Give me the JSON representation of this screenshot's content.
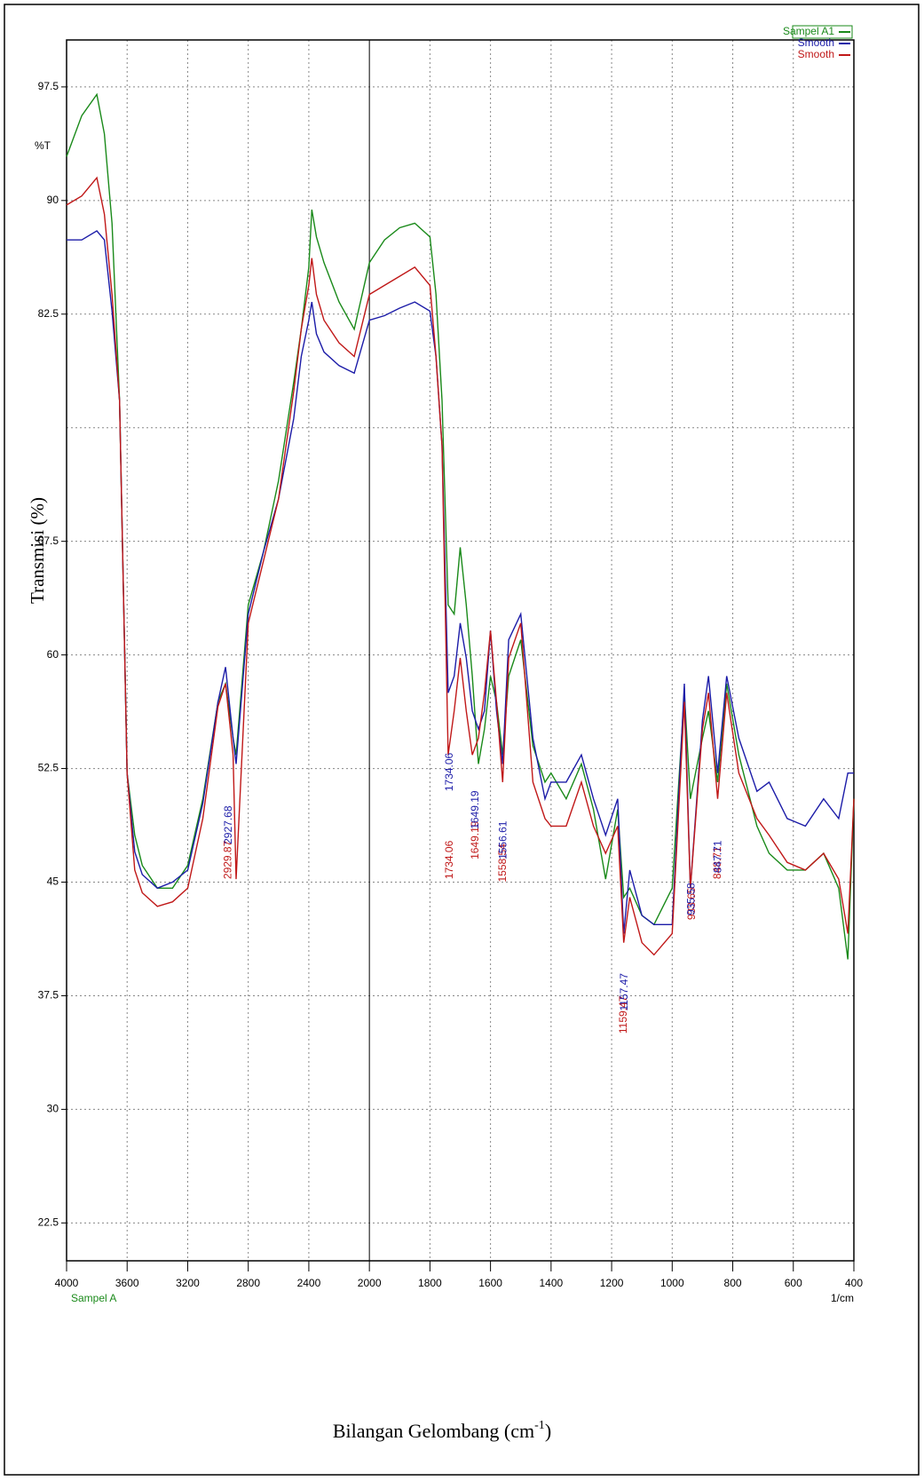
{
  "chart_data": {
    "type": "line",
    "ylabel": "Transmisi (%)",
    "xlabel": "Bilangan Gelombang (cm",
    "xlabel_sup": "-1",
    "xlabel_end": ")",
    "y_unit": "%T",
    "x_unit": "1/cm",
    "sample_name": "Sampel A",
    "xlim": [
      4000,
      400
    ],
    "x_break": 2000,
    "x_break_expansion": 2,
    "xticks": [
      4000,
      3600,
      3200,
      2800,
      2400,
      2000,
      1800,
      1600,
      1400,
      1200,
      1000,
      800,
      600,
      400
    ],
    "ylim": [
      20,
      100.6
    ],
    "yticks": [
      22.5,
      30,
      37.5,
      45,
      52.5,
      60,
      67.5,
      82.5,
      90,
      97.5
    ],
    "ygrid": [
      22.5,
      30,
      37.5,
      45,
      52.5,
      60,
      67.5,
      75,
      82.5,
      90,
      97.5
    ],
    "grid": true,
    "legend": "top-right",
    "x": [
      4000,
      3900,
      3800,
      3750,
      3700,
      3650,
      3600,
      3550,
      3500,
      3400,
      3300,
      3200,
      3100,
      3000,
      2950,
      2900,
      2880,
      2800,
      2700,
      2600,
      2500,
      2450,
      2400,
      2380,
      2350,
      2300,
      2200,
      2100,
      2000,
      1950,
      1900,
      1850,
      1800,
      1780,
      1760,
      1740,
      1720,
      1700,
      1680,
      1660,
      1640,
      1620,
      1600,
      1580,
      1560,
      1540,
      1500,
      1460,
      1420,
      1400,
      1350,
      1300,
      1260,
      1220,
      1180,
      1160,
      1140,
      1100,
      1060,
      1000,
      960,
      940,
      900,
      880,
      850,
      820,
      780,
      720,
      680,
      620,
      560,
      500,
      450,
      420,
      400
    ],
    "series": [
      {
        "name": "Sampel A1",
        "color": "#1a8a1a",
        "values": [
          92.9,
          95.6,
          97.0,
          94.4,
          88.5,
          76.8,
          52.2,
          48.1,
          46.1,
          44.6,
          44.6,
          46.1,
          50.5,
          56.9,
          58.1,
          54.5,
          53.4,
          63.3,
          66.8,
          71.5,
          78.0,
          81.5,
          85.6,
          89.4,
          87.6,
          85.9,
          83.3,
          81.5,
          85.9,
          87.4,
          88.2,
          88.5,
          87.6,
          83.8,
          76.8,
          63.3,
          62.7,
          67.1,
          63.3,
          58.6,
          52.8,
          55.1,
          58.6,
          56.9,
          53.4,
          58.6,
          61.0,
          54.0,
          51.6,
          52.2,
          50.5,
          52.8,
          49.8,
          45.2,
          49.8,
          44.0,
          44.6,
          42.8,
          42.2,
          44.6,
          57.5,
          50.5,
          54.5,
          56.3,
          51.6,
          58.1,
          53.4,
          48.7,
          46.9,
          45.8,
          45.8,
          46.9,
          44.6,
          39.9,
          50.5
        ]
      },
      {
        "name": "Smooth",
        "color": "#1c1ca8",
        "values": [
          87.4,
          87.4,
          88.0,
          87.4,
          82.7,
          76.8,
          52.2,
          47.0,
          45.5,
          44.6,
          45.0,
          45.8,
          50.2,
          56.9,
          59.2,
          54.5,
          52.8,
          62.7,
          66.8,
          70.3,
          75.6,
          79.7,
          82.1,
          83.3,
          81.2,
          80.0,
          79.1,
          78.6,
          82.1,
          82.4,
          82.9,
          83.3,
          82.7,
          79.7,
          73.8,
          57.5,
          58.6,
          62.1,
          59.8,
          56.3,
          55.1,
          56.3,
          61.6,
          56.3,
          52.8,
          61.0,
          62.7,
          54.5,
          50.5,
          51.6,
          51.6,
          53.4,
          50.5,
          48.1,
          50.5,
          41.6,
          45.8,
          42.8,
          42.2,
          42.2,
          58.1,
          44.6,
          55.7,
          58.6,
          52.2,
          58.6,
          54.5,
          51.0,
          51.6,
          49.2,
          48.7,
          50.5,
          49.2,
          52.2,
          52.2
        ]
      },
      {
        "name": "Smooth",
        "color": "#c01818",
        "values": [
          89.7,
          90.3,
          91.5,
          89.1,
          83.8,
          76.8,
          52.2,
          45.8,
          44.3,
          43.4,
          43.7,
          44.6,
          49.2,
          56.6,
          58.1,
          53.4,
          45.2,
          62.1,
          66.2,
          70.3,
          77.4,
          81.5,
          84.4,
          86.2,
          83.8,
          82.1,
          80.6,
          79.7,
          83.8,
          84.4,
          85.0,
          85.6,
          84.4,
          79.7,
          73.8,
          53.4,
          56.3,
          59.8,
          56.3,
          53.4,
          54.5,
          57.5,
          61.6,
          56.9,
          51.6,
          59.8,
          62.1,
          51.6,
          49.2,
          48.7,
          48.7,
          51.6,
          48.7,
          46.9,
          48.7,
          41.0,
          44.0,
          41.0,
          40.2,
          41.6,
          56.9,
          44.6,
          55.1,
          57.5,
          50.5,
          57.5,
          52.2,
          49.2,
          48.1,
          46.3,
          45.8,
          46.9,
          45.2,
          41.6,
          50.5
        ]
      }
    ],
    "peak_labels": [
      {
        "text": "2929.87",
        "x": 2929.87,
        "y": 45.2,
        "series": 2
      },
      {
        "text": "2927.68",
        "x": 2927.68,
        "y": 47.5,
        "series": 1
      },
      {
        "text": "1734.06",
        "x": 1734.06,
        "y": 45.2,
        "series": 2
      },
      {
        "text": "1734.06",
        "x": 1734.06,
        "y": 51.0,
        "series": 1
      },
      {
        "text": "1649.19",
        "x": 1649.19,
        "y": 46.5,
        "series": 2
      },
      {
        "text": "1649.19",
        "x": 1649.19,
        "y": 48.5,
        "series": 1
      },
      {
        "text": "1558.54",
        "x": 1558.54,
        "y": 45.0,
        "series": 2
      },
      {
        "text": "1556.61",
        "x": 1556.61,
        "y": 46.5,
        "series": 1
      },
      {
        "text": "1159.47",
        "x": 1159.47,
        "y": 35.0,
        "series": 2
      },
      {
        "text": "1157.47",
        "x": 1157.47,
        "y": 36.5,
        "series": 1
      },
      {
        "text": "933.65",
        "x": 933.65,
        "y": 42.5,
        "series": 2
      },
      {
        "text": "935.58",
        "x": 935.58,
        "y": 42.8,
        "series": 1
      },
      {
        "text": "848.71",
        "x": 848.71,
        "y": 45.2,
        "series": 2
      },
      {
        "text": "847.71",
        "x": 847.71,
        "y": 45.6,
        "series": 1
      }
    ]
  }
}
